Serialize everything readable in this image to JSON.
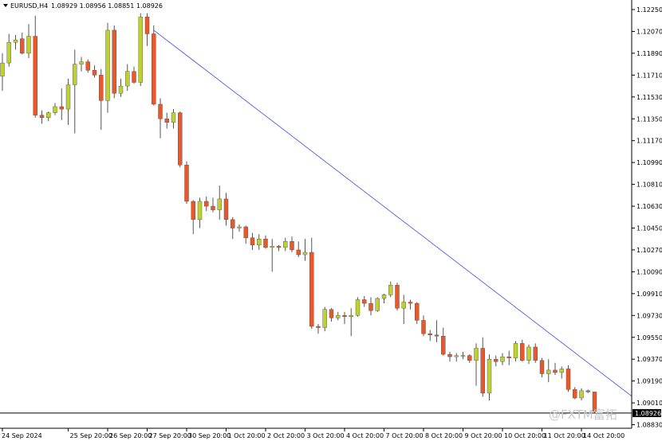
{
  "header": {
    "symbol_timeframe": "EURUSD,H4",
    "ohlc": "1.08929 1.08956 1.08851 1.08926"
  },
  "watermark": {
    "text": "@FXTM富拓"
  },
  "price_tag": {
    "text": "1.08926"
  },
  "colors": {
    "bull_body": "#bfd12f",
    "bear_body": "#e8582a",
    "wick": "#555555",
    "trendline": "#3b4fd8",
    "axis": "#000000",
    "price_line": "#000000"
  },
  "chart_data": {
    "type": "candlestick",
    "title": "",
    "xlabel": "",
    "ylabel": "",
    "ylim": [
      1.0875,
      1.1234
    ],
    "y_ticks": [
      "1.12250",
      "1.12070",
      "1.11890",
      "1.11710",
      "1.11530",
      "1.11350",
      "1.11170",
      "1.10990",
      "1.10810",
      "1.10630",
      "1.10450",
      "1.10270",
      "1.10090",
      "1.09910",
      "1.09730",
      "1.09550",
      "1.09370",
      "1.09190",
      "1.09010",
      "1.08830"
    ],
    "x_ticks": [
      {
        "label": "24 Sep 2024",
        "index": 0
      },
      {
        "label": "25 Sep 20:00",
        "index": 10
      },
      {
        "label": "26 Sep 20:00",
        "index": 16
      },
      {
        "label": "27 Sep 20:00",
        "index": 22
      },
      {
        "label": "30 Sep 20:00",
        "index": 28
      },
      {
        "label": "1 Oct 20:00",
        "index": 34
      },
      {
        "label": "2 Oct 20:00",
        "index": 40
      },
      {
        "label": "3 Oct 20:00",
        "index": 46
      },
      {
        "label": "4 Oct 20:00",
        "index": 52
      },
      {
        "label": "7 Oct 20:00",
        "index": 58
      },
      {
        "label": "8 Oct 20:00",
        "index": 64
      },
      {
        "label": "9 Oct 20:00",
        "index": 70
      },
      {
        "label": "10 Oct 20:00",
        "index": 76
      },
      {
        "label": "11 Oct 20:00",
        "index": 82
      },
      {
        "label": "14 Oct 20:00",
        "index": 88
      }
    ],
    "candles": [
      {
        "o": 1.117,
        "h": 1.1189,
        "l": 1.1158,
        "c": 1.1181
      },
      {
        "o": 1.1181,
        "h": 1.1205,
        "l": 1.1178,
        "c": 1.1198
      },
      {
        "o": 1.1198,
        "h": 1.1204,
        "l": 1.1192,
        "c": 1.12
      },
      {
        "o": 1.1201,
        "h": 1.1206,
        "l": 1.1188,
        "c": 1.1189
      },
      {
        "o": 1.1189,
        "h": 1.1213,
        "l": 1.1185,
        "c": 1.1203
      },
      {
        "o": 1.1203,
        "h": 1.122,
        "l": 1.1136,
        "c": 1.1138
      },
      {
        "o": 1.1138,
        "h": 1.1142,
        "l": 1.1131,
        "c": 1.1136
      },
      {
        "o": 1.1136,
        "h": 1.1141,
        "l": 1.1133,
        "c": 1.114
      },
      {
        "o": 1.114,
        "h": 1.1148,
        "l": 1.1138,
        "c": 1.1145
      },
      {
        "o": 1.1145,
        "h": 1.116,
        "l": 1.1134,
        "c": 1.1143
      },
      {
        "o": 1.1143,
        "h": 1.1168,
        "l": 1.113,
        "c": 1.1163
      },
      {
        "o": 1.1163,
        "h": 1.1192,
        "l": 1.1123,
        "c": 1.118
      },
      {
        "o": 1.118,
        "h": 1.1186,
        "l": 1.1174,
        "c": 1.1182
      },
      {
        "o": 1.1182,
        "h": 1.1184,
        "l": 1.1173,
        "c": 1.1175
      },
      {
        "o": 1.1175,
        "h": 1.1179,
        "l": 1.1169,
        "c": 1.1171
      },
      {
        "o": 1.1171,
        "h": 1.1176,
        "l": 1.1126,
        "c": 1.115
      },
      {
        "o": 1.115,
        "h": 1.1214,
        "l": 1.114,
        "c": 1.1208
      },
      {
        "o": 1.1208,
        "h": 1.1212,
        "l": 1.1152,
        "c": 1.1156
      },
      {
        "o": 1.1156,
        "h": 1.1168,
        "l": 1.1153,
        "c": 1.1162
      },
      {
        "o": 1.1162,
        "h": 1.118,
        "l": 1.1158,
        "c": 1.1174
      },
      {
        "o": 1.1174,
        "h": 1.1178,
        "l": 1.1164,
        "c": 1.1165
      },
      {
        "o": 1.1165,
        "h": 1.1222,
        "l": 1.1162,
        "c": 1.1219
      },
      {
        "o": 1.1219,
        "h": 1.1222,
        "l": 1.1195,
        "c": 1.1205
      },
      {
        "o": 1.1205,
        "h": 1.1212,
        "l": 1.1146,
        "c": 1.1147
      },
      {
        "o": 1.1147,
        "h": 1.1152,
        "l": 1.1119,
        "c": 1.1135
      },
      {
        "o": 1.1135,
        "h": 1.114,
        "l": 1.1127,
        "c": 1.1132
      },
      {
        "o": 1.1132,
        "h": 1.1143,
        "l": 1.1127,
        "c": 1.114
      },
      {
        "o": 1.114,
        "h": 1.1141,
        "l": 1.1095,
        "c": 1.1097
      },
      {
        "o": 1.1097,
        "h": 1.11,
        "l": 1.1065,
        "c": 1.1067
      },
      {
        "o": 1.1067,
        "h": 1.1068,
        "l": 1.104,
        "c": 1.1052
      },
      {
        "o": 1.1052,
        "h": 1.107,
        "l": 1.1045,
        "c": 1.1067
      },
      {
        "o": 1.1067,
        "h": 1.1071,
        "l": 1.1059,
        "c": 1.1063
      },
      {
        "o": 1.1063,
        "h": 1.107,
        "l": 1.1058,
        "c": 1.106
      },
      {
        "o": 1.106,
        "h": 1.108,
        "l": 1.1052,
        "c": 1.1069
      },
      {
        "o": 1.1069,
        "h": 1.1074,
        "l": 1.1047,
        "c": 1.1052
      },
      {
        "o": 1.1052,
        "h": 1.1054,
        "l": 1.1036,
        "c": 1.1045
      },
      {
        "o": 1.1045,
        "h": 1.1048,
        "l": 1.1042,
        "c": 1.1046
      },
      {
        "o": 1.1046,
        "h": 1.1047,
        "l": 1.1032,
        "c": 1.1037
      },
      {
        "o": 1.1037,
        "h": 1.1041,
        "l": 1.1027,
        "c": 1.1031
      },
      {
        "o": 1.1031,
        "h": 1.104,
        "l": 1.1027,
        "c": 1.1036
      },
      {
        "o": 1.1036,
        "h": 1.1039,
        "l": 1.1028,
        "c": 1.1029
      },
      {
        "o": 1.1029,
        "h": 1.1036,
        "l": 1.1009,
        "c": 1.103
      },
      {
        "o": 1.103,
        "h": 1.1031,
        "l": 1.1026,
        "c": 1.1029
      },
      {
        "o": 1.1029,
        "h": 1.1037,
        "l": 1.1026,
        "c": 1.1034
      },
      {
        "o": 1.1034,
        "h": 1.1038,
        "l": 1.1025,
        "c": 1.1027
      },
      {
        "o": 1.1027,
        "h": 1.1034,
        "l": 1.1021,
        "c": 1.1023
      },
      {
        "o": 1.1023,
        "h": 1.1036,
        "l": 1.1018,
        "c": 1.1025
      },
      {
        "o": 1.1025,
        "h": 1.1037,
        "l": 1.0962,
        "c": 1.0964
      },
      {
        "o": 1.0964,
        "h": 1.0966,
        "l": 1.0958,
        "c": 1.0963
      },
      {
        "o": 1.0963,
        "h": 1.098,
        "l": 1.096,
        "c": 1.0978
      },
      {
        "o": 1.0978,
        "h": 1.0979,
        "l": 1.0968,
        "c": 1.0971
      },
      {
        "o": 1.0971,
        "h": 1.0976,
        "l": 1.0969,
        "c": 1.0973
      },
      {
        "o": 1.0973,
        "h": 1.0976,
        "l": 1.0966,
        "c": 1.0972
      },
      {
        "o": 1.0972,
        "h": 1.0979,
        "l": 1.0956,
        "c": 1.0973
      },
      {
        "o": 1.0973,
        "h": 1.0988,
        "l": 1.0972,
        "c": 1.0986
      },
      {
        "o": 1.0986,
        "h": 1.0989,
        "l": 1.098,
        "c": 1.0983
      },
      {
        "o": 1.0983,
        "h": 1.0988,
        "l": 1.0973,
        "c": 1.0977
      },
      {
        "o": 1.0977,
        "h": 1.0988,
        "l": 1.0976,
        "c": 1.0987
      },
      {
        "o": 1.0987,
        "h": 1.0991,
        "l": 1.0983,
        "c": 1.099
      },
      {
        "o": 1.099,
        "h": 1.1001,
        "l": 1.0988,
        "c": 1.0998
      },
      {
        "o": 1.0998,
        "h": 1.1,
        "l": 1.0977,
        "c": 1.0979
      },
      {
        "o": 1.0979,
        "h": 1.099,
        "l": 1.0966,
        "c": 1.0984
      },
      {
        "o": 1.0984,
        "h": 1.0986,
        "l": 1.0978,
        "c": 1.0983
      },
      {
        "o": 1.0983,
        "h": 1.0984,
        "l": 1.0966,
        "c": 1.0969
      },
      {
        "o": 1.0969,
        "h": 1.0973,
        "l": 1.0956,
        "c": 1.0958
      },
      {
        "o": 1.0958,
        "h": 1.0961,
        "l": 1.0952,
        "c": 1.0957
      },
      {
        "o": 1.0957,
        "h": 1.0969,
        "l": 1.0951,
        "c": 1.0956
      },
      {
        "o": 1.0956,
        "h": 1.0963,
        "l": 1.094,
        "c": 1.0941
      },
      {
        "o": 1.0941,
        "h": 1.0943,
        "l": 1.0935,
        "c": 1.0939
      },
      {
        "o": 1.0939,
        "h": 1.0942,
        "l": 1.0935,
        "c": 1.094
      },
      {
        "o": 1.094,
        "h": 1.0943,
        "l": 1.0937,
        "c": 1.094
      },
      {
        "o": 1.094,
        "h": 1.0941,
        "l": 1.0934,
        "c": 1.0936
      },
      {
        "o": 1.0936,
        "h": 1.095,
        "l": 1.0915,
        "c": 1.0946
      },
      {
        "o": 1.0946,
        "h": 1.0955,
        "l": 1.0906,
        "c": 1.0909
      },
      {
        "o": 1.0909,
        "h": 1.0941,
        "l": 1.0903,
        "c": 1.0937
      },
      {
        "o": 1.0937,
        "h": 1.094,
        "l": 1.0931,
        "c": 1.0935
      },
      {
        "o": 1.0935,
        "h": 1.0942,
        "l": 1.0932,
        "c": 1.0939
      },
      {
        "o": 1.0939,
        "h": 1.0944,
        "l": 1.0932,
        "c": 1.0938
      },
      {
        "o": 1.0938,
        "h": 1.0952,
        "l": 1.0935,
        "c": 1.095
      },
      {
        "o": 1.095,
        "h": 1.0953,
        "l": 1.0935,
        "c": 1.0936
      },
      {
        "o": 1.0936,
        "h": 1.0949,
        "l": 1.0933,
        "c": 1.0947
      },
      {
        "o": 1.0947,
        "h": 1.095,
        "l": 1.0934,
        "c": 1.0936
      },
      {
        "o": 1.0936,
        "h": 1.0938,
        "l": 1.0922,
        "c": 1.0925
      },
      {
        "o": 1.0925,
        "h": 1.0937,
        "l": 1.0918,
        "c": 1.0928
      },
      {
        "o": 1.0928,
        "h": 1.0934,
        "l": 1.0924,
        "c": 1.0926
      },
      {
        "o": 1.0926,
        "h": 1.0931,
        "l": 1.0921,
        "c": 1.0929
      },
      {
        "o": 1.0929,
        "h": 1.0932,
        "l": 1.091,
        "c": 1.0912
      },
      {
        "o": 1.0912,
        "h": 1.0914,
        "l": 1.0904,
        "c": 1.0905
      },
      {
        "o": 1.0905,
        "h": 1.0913,
        "l": 1.0903,
        "c": 1.0911
      },
      {
        "o": 1.0911,
        "h": 1.0912,
        "l": 1.0909,
        "c": 1.091
      },
      {
        "o": 1.091,
        "h": 1.091,
        "l": 1.0893,
        "c": 1.0894
      }
    ],
    "trendline": {
      "from": {
        "index": 23,
        "price": 1.1208
      },
      "to": {
        "index": 96,
        "price": 1.0905
      }
    },
    "current_price": 1.08926
  }
}
